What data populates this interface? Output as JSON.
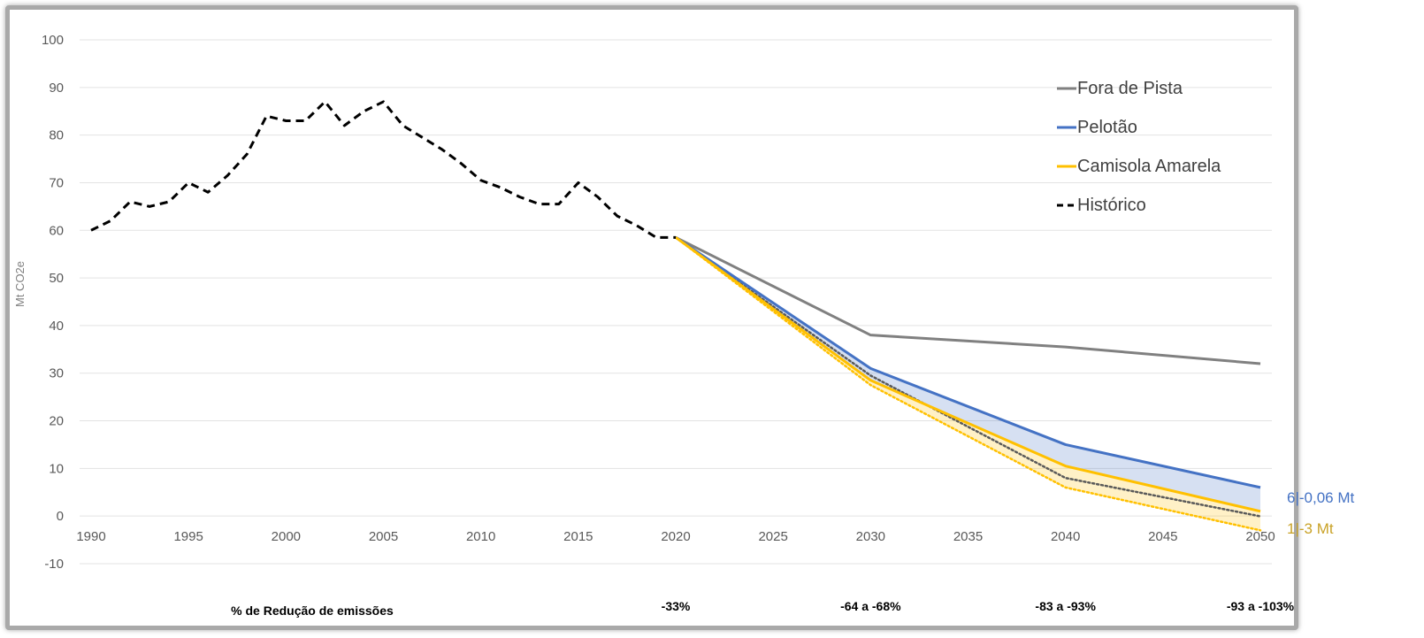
{
  "chart_data": {
    "type": "line",
    "ylabel": "Mt CO2e",
    "ylim": [
      -10,
      100
    ],
    "yticks": [
      100,
      90,
      80,
      70,
      60,
      50,
      40,
      30,
      20,
      10,
      0,
      -10
    ],
    "xlim": [
      1990,
      2050
    ],
    "xticks": [
      1990,
      1995,
      2000,
      2005,
      2010,
      2015,
      2020,
      2025,
      2030,
      2035,
      2040,
      2045,
      2050
    ],
    "grid": "horizontal",
    "legend_position": "top-right",
    "series": [
      {
        "name": "Fora de Pista",
        "color": "#808080",
        "style": "solid",
        "x": [
          2020,
          2030,
          2040,
          2050
        ],
        "y": [
          58.5,
          38,
          35.5,
          32
        ]
      },
      {
        "name": "Pelotão",
        "color": "#4472c4",
        "style": "solid",
        "x": [
          2020,
          2030,
          2040,
          2050
        ],
        "y": [
          58.5,
          31,
          15,
          6
        ]
      },
      {
        "name": "Camisola Amarela",
        "color": "#ffc000",
        "style": "solid",
        "x": [
          2020,
          2030,
          2040,
          2050
        ],
        "y": [
          58.5,
          28.5,
          10.5,
          1
        ]
      },
      {
        "name": "Histórico",
        "color": "#000000",
        "style": "dashed",
        "x": [
          1990,
          1991,
          1992,
          1993,
          1994,
          1995,
          1996,
          1997,
          1998,
          1999,
          2000,
          2001,
          2002,
          2003,
          2004,
          2005,
          2006,
          2007,
          2008,
          2009,
          2010,
          2011,
          2012,
          2013,
          2014,
          2015,
          2016,
          2017,
          2018,
          2019,
          2020
        ],
        "y": [
          60,
          62,
          66,
          65,
          66,
          70,
          68,
          71.5,
          76,
          84,
          83,
          83,
          87,
          82,
          85,
          87,
          82,
          79.5,
          77,
          74,
          70.5,
          69,
          67,
          65.5,
          65.5,
          70,
          67,
          63,
          61,
          58.5,
          58.5
        ]
      }
    ],
    "auxiliary_lines": [
      {
        "color": "#ffc000",
        "style": "dotted",
        "x": [
          2020,
          2030,
          2040,
          2050
        ],
        "y": [
          58.5,
          27.5,
          6,
          -3
        ]
      },
      {
        "color": "#595959",
        "style": "dotted",
        "x": [
          2020,
          2030,
          2040,
          2050
        ],
        "y": [
          58.5,
          29.5,
          8,
          -0.06
        ]
      }
    ],
    "bands": [
      {
        "color": "#4472c4",
        "upper": [
          58.5,
          31,
          15,
          6
        ],
        "lower": [
          58.5,
          28.5,
          10.5,
          1
        ]
      },
      {
        "color": "#ffc000",
        "upper": [
          58.5,
          28.5,
          10.5,
          1
        ],
        "lower": [
          58.5,
          27.5,
          6,
          -3
        ]
      }
    ],
    "end_labels": [
      {
        "text": "6|-0,06 Mt",
        "color": "#4472c4"
      },
      {
        "text": "1|-3 Mt",
        "color": "#c9a227"
      }
    ],
    "reduction_row": {
      "label": "% de Redução de emissões",
      "items": [
        {
          "year": 2020,
          "text": "-33%"
        },
        {
          "year": 2030,
          "text": "-64 a -68%"
        },
        {
          "year": 2040,
          "text": "-83 a -93%"
        },
        {
          "year": 2050,
          "text": "-93 a -103%"
        }
      ]
    }
  }
}
